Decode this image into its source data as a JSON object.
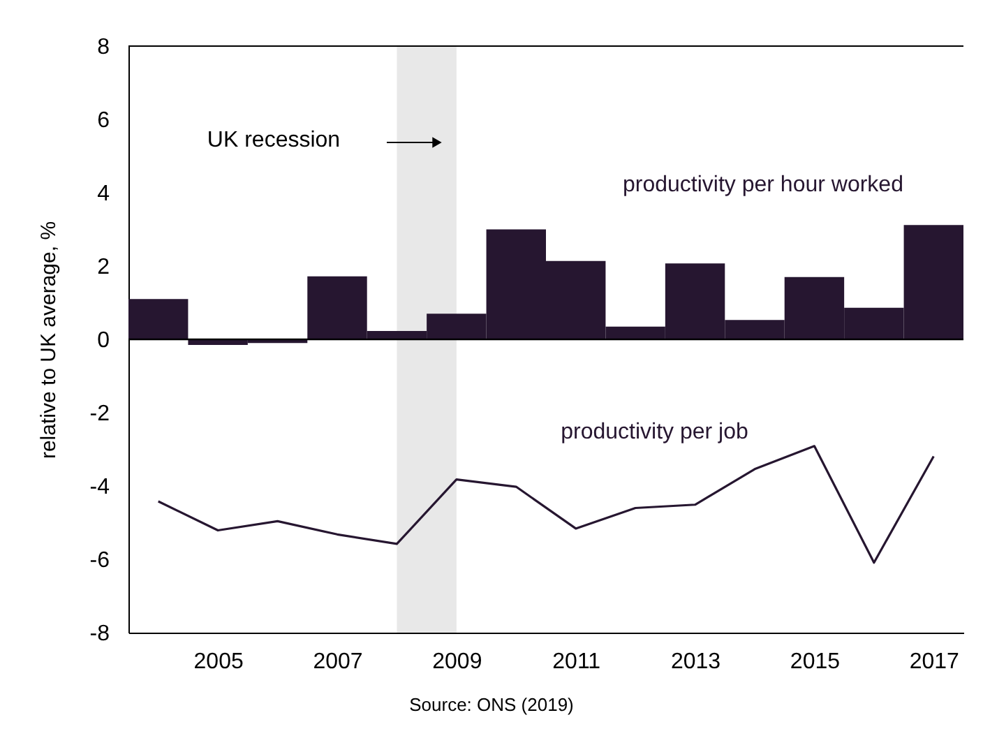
{
  "chart_data": {
    "type": "bar",
    "x": [
      2004,
      2005,
      2006,
      2007,
      2008,
      2009,
      2010,
      2011,
      2012,
      2013,
      2014,
      2015,
      2016,
      2017
    ],
    "xlim": [
      2003.5,
      2017.5
    ],
    "xticks": [
      2005,
      2007,
      2009,
      2011,
      2013,
      2015,
      2017
    ],
    "ylim": [
      -8,
      8
    ],
    "yticks": [
      -8,
      -6,
      -4,
      -2,
      0,
      2,
      4,
      6,
      8
    ],
    "ylabel": "relative to UK average, %",
    "series": [
      {
        "name": "productivity per hour worked",
        "color": "#261630",
        "values": [
          1.1,
          -0.15,
          -0.1,
          1.72,
          0.23,
          0.7,
          3.0,
          2.14,
          0.35,
          2.07,
          0.53,
          1.7,
          0.86,
          3.12
        ]
      },
      {
        "name": "productivity per job",
        "type": "line",
        "color": "#261630",
        "values": [
          -4.42,
          -5.21,
          -4.96,
          -5.32,
          -5.58,
          -3.82,
          -4.02,
          -5.16,
          -4.6,
          -4.51,
          -3.54,
          -2.91,
          -6.09,
          -3.19
        ]
      }
    ],
    "bands": [
      {
        "axis": "x",
        "from": 2008,
        "to": 2009,
        "color": "#e8e8e8"
      }
    ],
    "ref_lines": [
      {
        "axis": "y",
        "value": 0,
        "color": "#000000"
      }
    ],
    "annotations": [
      "UK recession",
      "Source: ONS (2019)"
    ],
    "marker": "none",
    "line_style": "solid"
  }
}
